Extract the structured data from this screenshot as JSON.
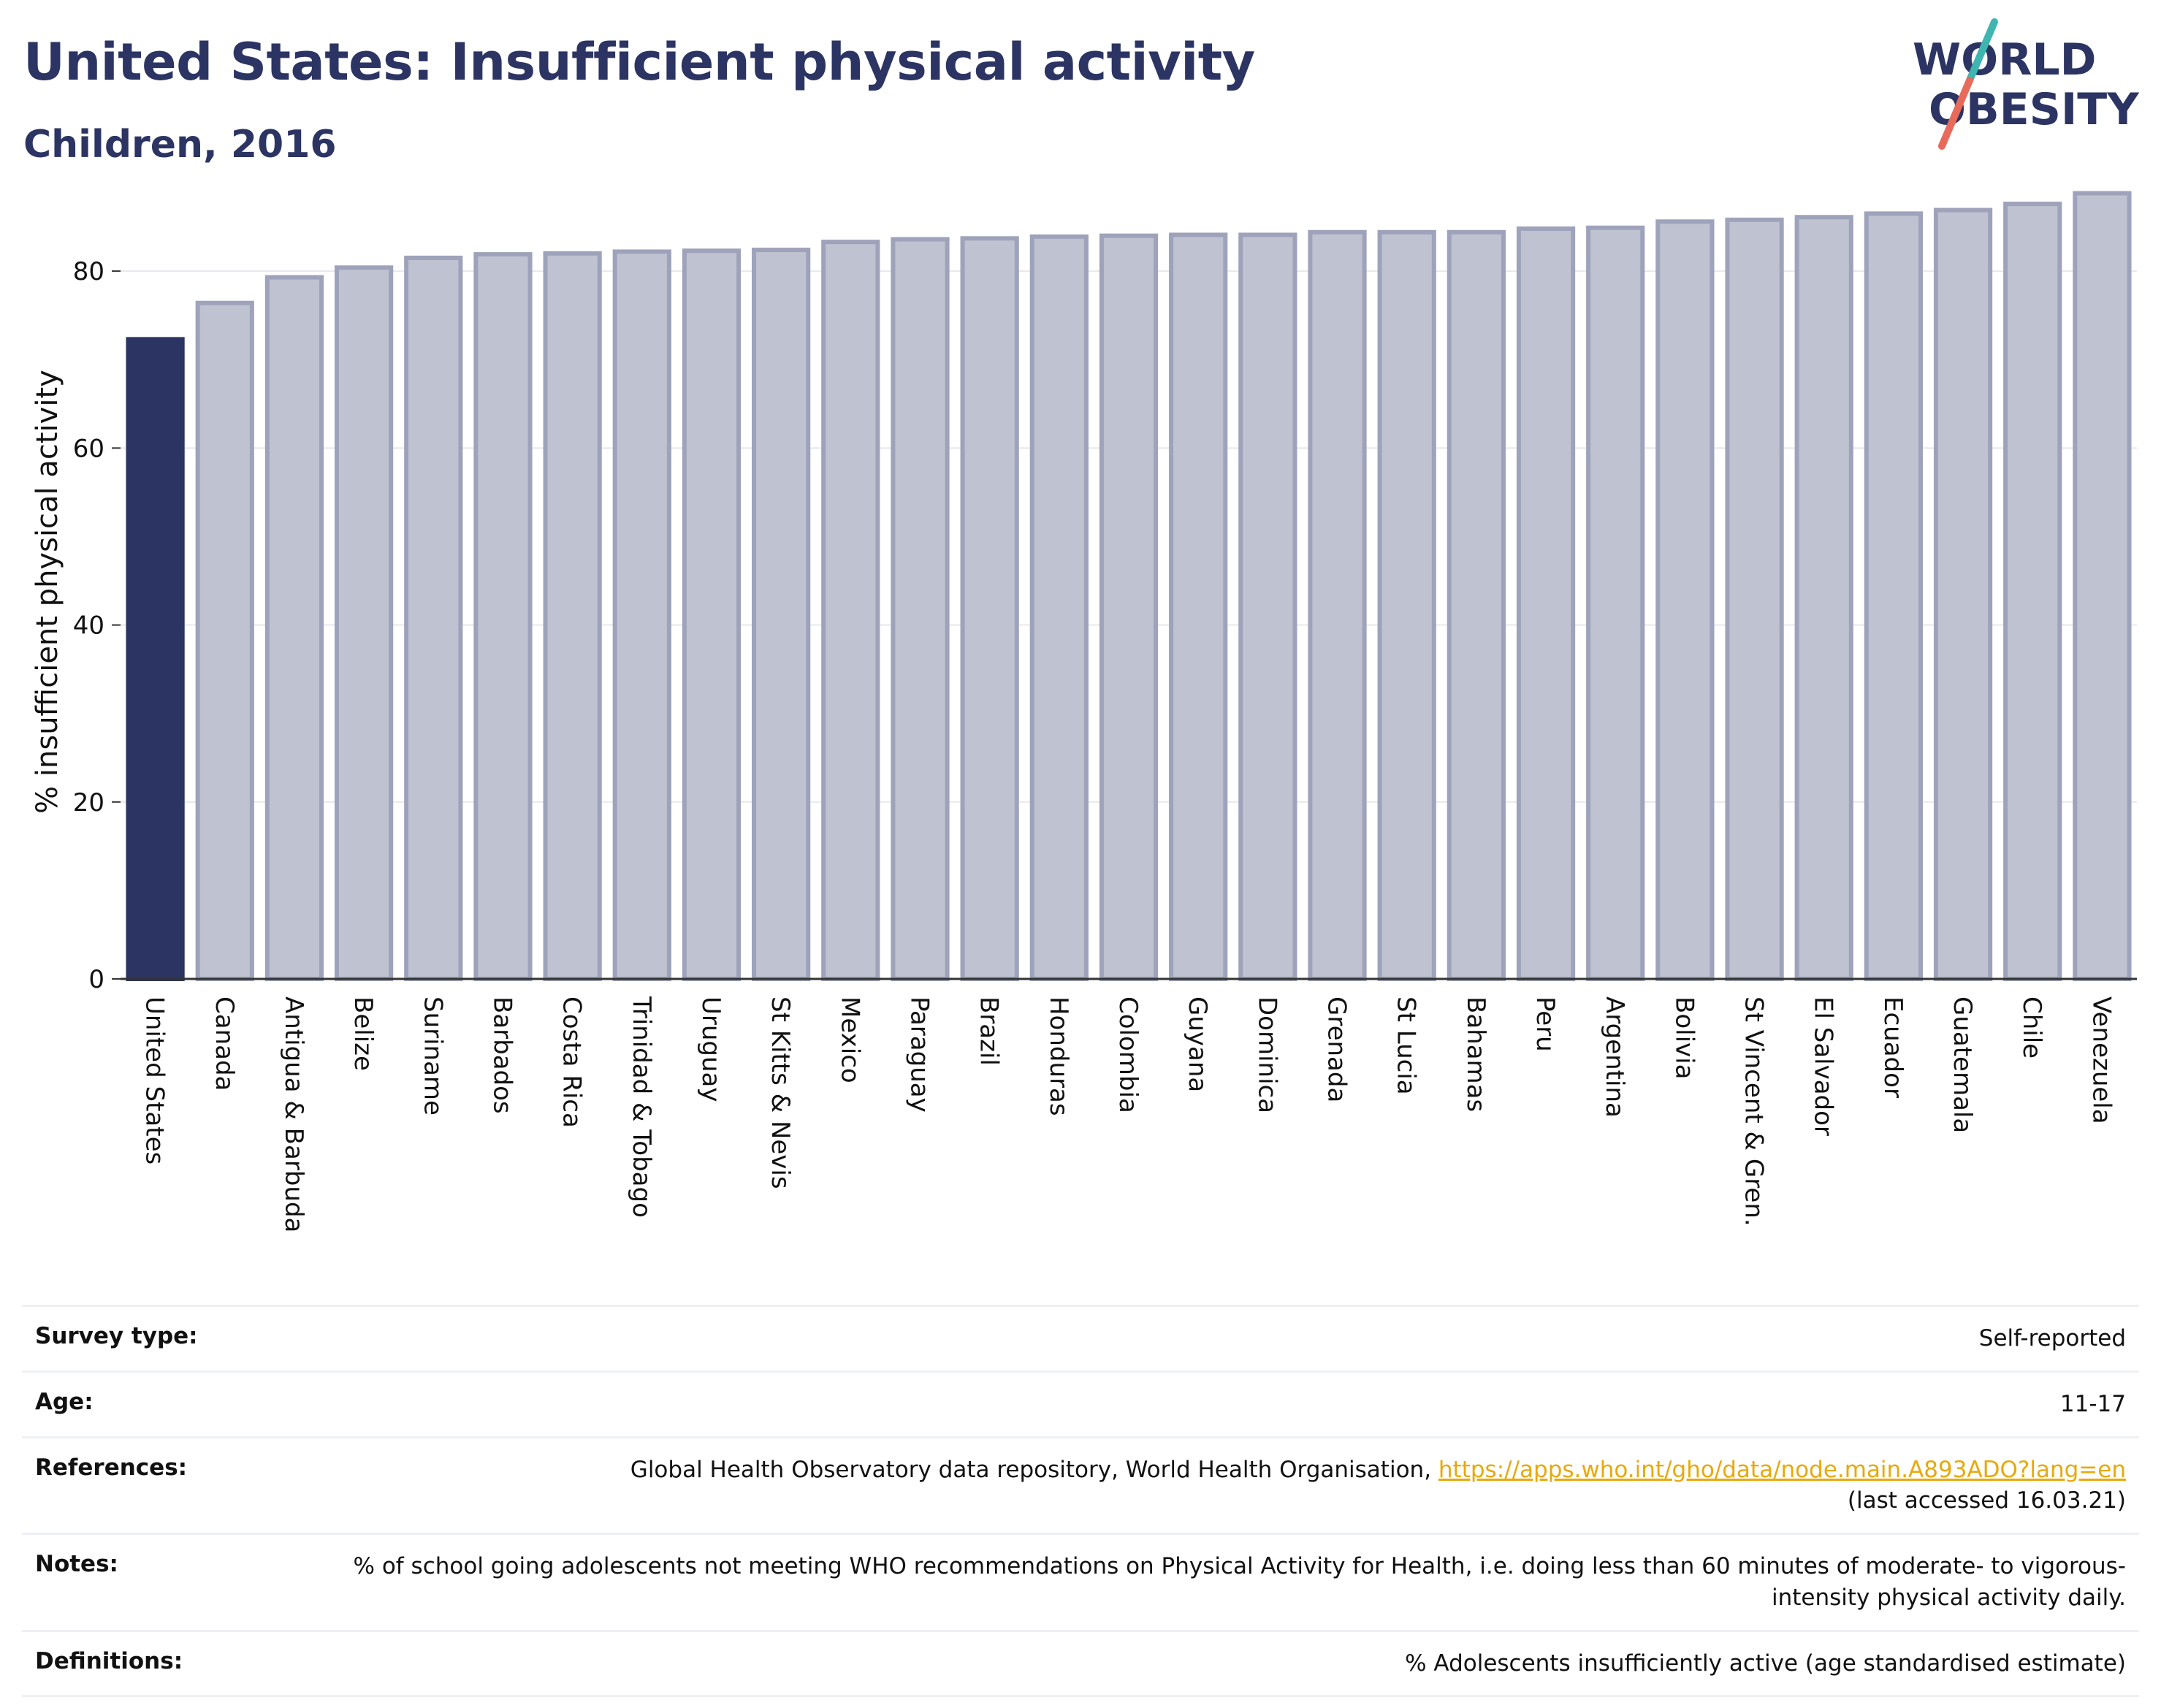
{
  "header": {
    "title": "United States: Insufficient physical activity",
    "subtitle": "Children, 2016"
  },
  "logo": {
    "line1": "WORLD",
    "line2": "OBESITY",
    "accent_teal": "#3fb5b0",
    "accent_coral": "#e86a5a"
  },
  "colors": {
    "highlight_bar": "#2b3462",
    "other_bar_fill": "#bfc2d0",
    "other_bar_stroke": "#9ea3bb",
    "axis": "#333333",
    "grid": "#e6e8ee"
  },
  "chart_data": {
    "type": "bar",
    "ylabel": "% insufficient physical activity",
    "ylim": [
      0,
      90
    ],
    "yticks": [
      0,
      20,
      40,
      60,
      80
    ],
    "grid": true,
    "highlight": "United States",
    "categories": [
      "United States",
      "Canada",
      "Antigua & Barbuda",
      "Belize",
      "Suriname",
      "Barbados",
      "Costa Rica",
      "Trinidad & Tobago",
      "Uruguay",
      "St Kitts & Nevis",
      "Mexico",
      "Paraguay",
      "Brazil",
      "Honduras",
      "Colombia",
      "Guyana",
      "Dominica",
      "Grenada",
      "St Lucia",
      "Bahamas",
      "Peru",
      "Argentina",
      "Bolivia",
      "St Vincent & Gren.",
      "El Salvador",
      "Ecuador",
      "Guatemala",
      "Chile",
      "Venezuela"
    ],
    "values": [
      72.3,
      76.4,
      79.3,
      80.4,
      81.5,
      81.9,
      82.0,
      82.2,
      82.3,
      82.4,
      83.3,
      83.6,
      83.7,
      83.9,
      84.0,
      84.1,
      84.1,
      84.4,
      84.4,
      84.4,
      84.8,
      84.9,
      85.6,
      85.8,
      86.1,
      86.5,
      86.9,
      87.6,
      88.8
    ]
  },
  "info_table": {
    "survey_type_label": "Survey type:",
    "survey_type_value": "Self-reported",
    "age_label": "Age:",
    "age_value": "11-17",
    "references_label": "References:",
    "references_text": "Global Health Observatory data repository, World Health Organisation, ",
    "references_link": "https://apps.who.int/gho/data/node.main.A893ADO?lang=en",
    "references_accessed": "(last accessed 16.03.21)",
    "notes_label": "Notes:",
    "notes_value": "% of school going adolescents not meeting WHO recommendations on Physical Activity for Health, i.e. doing less than 60 minutes of moderate- to vigorous-intensity physical activity daily.",
    "definitions_label": "Definitions:",
    "definitions_value": "% Adolescents insufficiently active (age standardised estimate)"
  }
}
